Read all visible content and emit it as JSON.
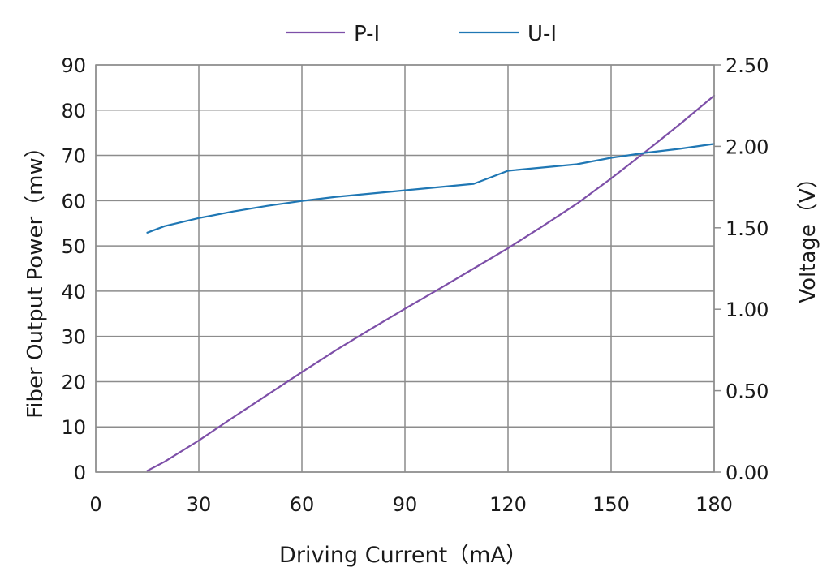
{
  "chart_data": {
    "type": "line",
    "xlabel": "Driving Current（mA）",
    "ylabel": "Fiber Output Power（mw）",
    "y2label": "Voltage（V）",
    "xlim": [
      0,
      180
    ],
    "ylim": [
      0,
      90
    ],
    "y2lim": [
      0,
      2.5
    ],
    "xticks": [
      "0",
      "30",
      "60",
      "90",
      "120",
      "150",
      "180"
    ],
    "yticks": [
      "0",
      "10",
      "20",
      "30",
      "40",
      "50",
      "60",
      "70",
      "80",
      "90"
    ],
    "y2ticks": [
      "0.00",
      "0.50",
      "1.00",
      "1.50",
      "2.00",
      "2.50"
    ],
    "grid": true,
    "legend_position": "top-center",
    "series": [
      {
        "name": "P-I",
        "axis": "left",
        "color": "#7d4fa8",
        "x": [
          15,
          20,
          30,
          40,
          50,
          60,
          70,
          80,
          90,
          100,
          110,
          120,
          130,
          140,
          150,
          160,
          170,
          180
        ],
        "y": [
          0.3,
          2.3,
          7.0,
          12.1,
          17.1,
          22.1,
          27.0,
          31.6,
          36.1,
          40.5,
          45.0,
          49.5,
          54.3,
          59.3,
          64.9,
          70.8,
          76.9,
          83.2
        ]
      },
      {
        "name": "U-I",
        "axis": "right",
        "color": "#1f77b4",
        "x": [
          15,
          20,
          30,
          40,
          50,
          60,
          70,
          80,
          90,
          100,
          110,
          120,
          130,
          140,
          150,
          160,
          170,
          180
        ],
        "y": [
          1.47,
          1.51,
          1.56,
          1.6,
          1.635,
          1.665,
          1.69,
          1.71,
          1.73,
          1.75,
          1.77,
          1.85,
          1.87,
          1.89,
          1.93,
          1.96,
          1.985,
          2.015
        ]
      }
    ]
  }
}
